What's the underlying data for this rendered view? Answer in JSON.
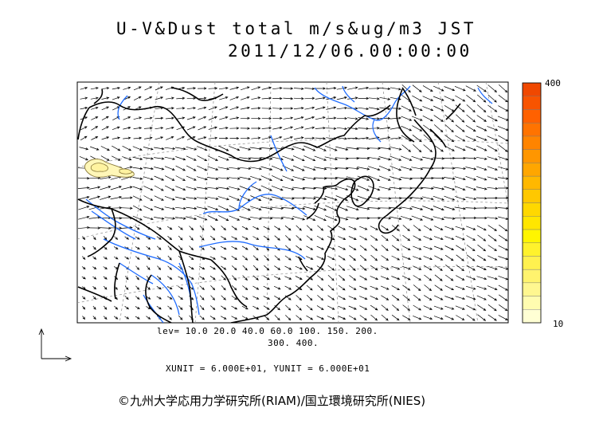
{
  "title": {
    "line1": "U-V&Dust total m/s&ug/m3 JST",
    "line2": "2011/12/06.00:00:00"
  },
  "contour_levels": {
    "line1": "lev= 10.0 20.0 40.0 60.0 100. 150. 200.",
    "line2": "300. 400."
  },
  "vector_units": "XUNIT = 6.000E+01, YUNIT = 6.000E+01",
  "colorbar": {
    "max_label": "400",
    "min_label": "10",
    "colors": [
      "#ffffd4",
      "#fffcb0",
      "#fff790",
      "#fff36e",
      "#fff14f",
      "#fff22c",
      "#fff500",
      "#ffe600",
      "#ffd800",
      "#ffc800",
      "#ffb800",
      "#ffa600",
      "#ff9600",
      "#ff8400",
      "#ff7300",
      "#ff6100",
      "#f85400",
      "#f04800"
    ]
  },
  "colors": {
    "coast": "#000000",
    "river": "#1f6cff",
    "dust_fill": "#fff7b8",
    "dust_contour": "#8a7a3a"
  },
  "credit": "©九州大学応用力学研究所(RIAM)/国立環境研究所(NIES)"
}
